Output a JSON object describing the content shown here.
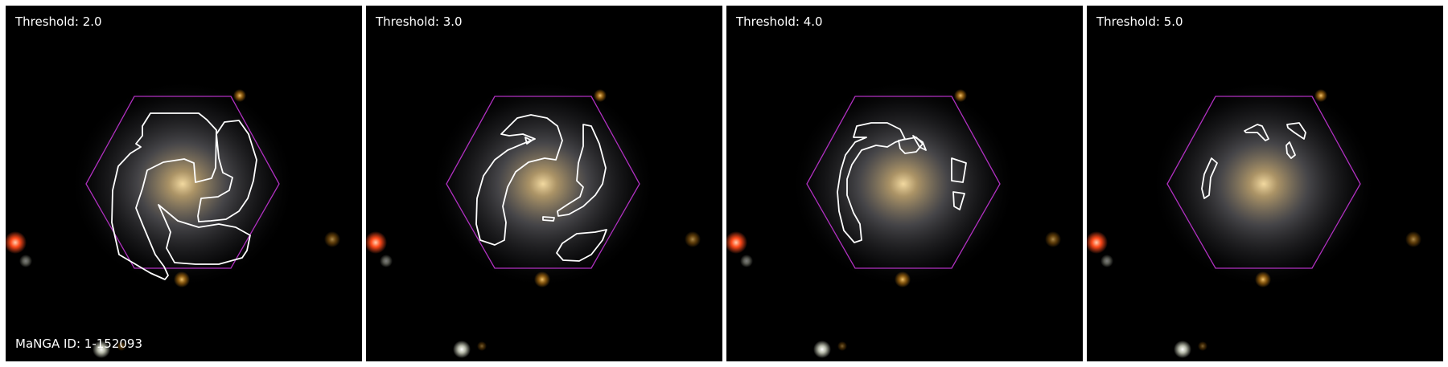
{
  "figure": {
    "manga_id_label": "MaNGA ID: 1-152093",
    "panels": [
      {
        "threshold_label": "Threshold: 2.0"
      },
      {
        "threshold_label": "Threshold: 3.0"
      },
      {
        "threshold_label": "Threshold: 4.0"
      },
      {
        "threshold_label": "Threshold: 5.0"
      }
    ]
  },
  "colors": {
    "background": "#000000",
    "hexagon": "#b030c0",
    "contour": "#ffffff",
    "galaxy_core": "#f2d9a0",
    "galaxy_disk": "#7d7c82",
    "red_star": "#ff4a1a",
    "orange_star": "#d9901c"
  }
}
